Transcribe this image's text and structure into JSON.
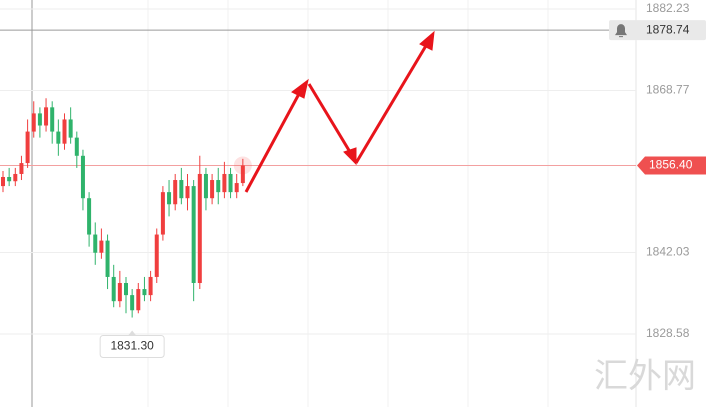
{
  "chart_data": {
    "type": "candlestick",
    "open": [
      1853,
      1854.5,
      1853.8,
      1855,
      1856.8,
      1862,
      1865,
      1863,
      1866,
      1862,
      1860,
      1864,
      1861,
      1858,
      1851,
      1845,
      1842,
      1844,
      1838,
      1834,
      1837,
      1835,
      1832.5,
      1836,
      1835,
      1838,
      1845,
      1852,
      1850,
      1854,
      1851,
      1853,
      1837,
      1855,
      1851,
      1854,
      1852,
      1855,
      1852,
      1853.5
    ],
    "high": [
      1855.5,
      1856,
      1856,
      1858,
      1864,
      1867,
      1866,
      1867.5,
      1867,
      1864,
      1865,
      1866,
      1862,
      1859,
      1852,
      1847,
      1846,
      1845,
      1840,
      1839,
      1838,
      1836,
      1837,
      1838,
      1839,
      1846,
      1853,
      1854,
      1855,
      1856,
      1855,
      1854,
      1858,
      1856,
      1855,
      1856,
      1857,
      1856,
      1855,
      1857.5
    ],
    "low": [
      1852,
      1853,
      1853,
      1854,
      1856,
      1861,
      1861,
      1862,
      1860,
      1858,
      1859,
      1860,
      1856,
      1849,
      1843,
      1840,
      1841,
      1836,
      1833,
      1833,
      1832,
      1831.3,
      1832,
      1834,
      1834,
      1837,
      1844,
      1848,
      1849,
      1850,
      1849,
      1834,
      1836,
      1849,
      1850,
      1850,
      1851,
      1851,
      1851,
      1853
    ],
    "close": [
      1854.5,
      1853.8,
      1855,
      1856.8,
      1862,
      1865,
      1863,
      1866,
      1862,
      1860,
      1864,
      1861,
      1858,
      1851,
      1845,
      1842,
      1844,
      1838,
      1834,
      1837,
      1835,
      1832.5,
      1836,
      1835,
      1838,
      1845,
      1852,
      1850,
      1854,
      1851,
      1853,
      1837,
      1855,
      1851,
      1854,
      1852,
      1855,
      1852,
      1853.5,
      1856.4
    ],
    "up_color": "#f03e3e",
    "down_color": "#2fb36b",
    "ylim": [
      1816.53,
      1883.72
    ],
    "yticks": [
      1882.23,
      1868.77,
      1842.03,
      1828.58
    ],
    "grid": true,
    "current_price": {
      "value": 1856.4,
      "label": "1856.40"
    },
    "alert_price": 1878.74,
    "low_marker": {
      "value": 1831.3,
      "label": "1831.30"
    },
    "watermark": "汇外网"
  }
}
